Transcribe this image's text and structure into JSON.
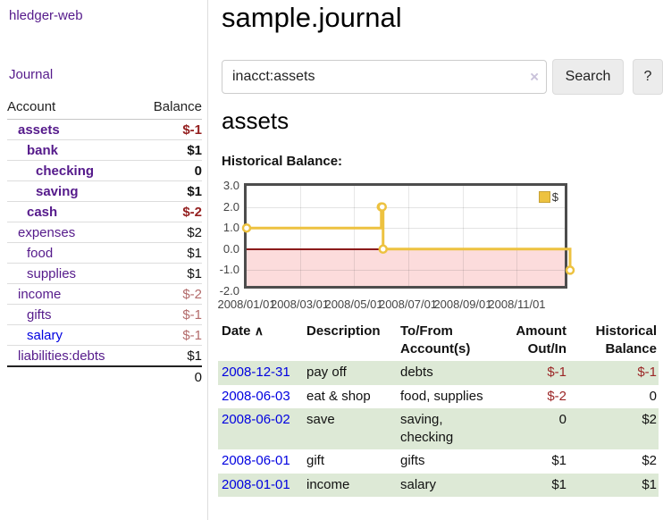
{
  "sidebar": {
    "app_title": "hledger-web",
    "nav": {
      "journal": "Journal"
    },
    "accounts": {
      "headers": {
        "account": "Account",
        "balance": "Balance"
      },
      "rows": [
        {
          "name": "assets",
          "balance": "$-1"
        },
        {
          "name": "bank",
          "balance": "$1"
        },
        {
          "name": "checking",
          "balance": "0"
        },
        {
          "name": "saving",
          "balance": "$1"
        },
        {
          "name": "cash",
          "balance": "$-2"
        },
        {
          "name": "expenses",
          "balance": "$2"
        },
        {
          "name": "food",
          "balance": "$1"
        },
        {
          "name": "supplies",
          "balance": "$1"
        },
        {
          "name": "income",
          "balance": "$-2"
        },
        {
          "name": "gifts",
          "balance": "$-1"
        },
        {
          "name": "salary",
          "balance": "$-1"
        },
        {
          "name": "liabilities:debts",
          "balance": "$1"
        }
      ],
      "total": "0"
    }
  },
  "header": {
    "title": "sample.journal"
  },
  "search": {
    "value": "inacct:assets",
    "clear_icon": "×",
    "search_button": "Search",
    "help_button": "?"
  },
  "account_page": {
    "title": "assets",
    "chart_title": "Historical Balance:"
  },
  "chart_data": {
    "type": "line",
    "step": true,
    "title": "Historical Balance",
    "legend": "$",
    "x_start": "2008-01-01",
    "x_end": "2008-12-31",
    "ylim": [
      -2,
      3
    ],
    "yticks": [
      "3.0",
      "2.0",
      "1.0",
      "0.0",
      "-1.0",
      "-2.0"
    ],
    "xticks": [
      {
        "label": "2008/01/01",
        "date": "2008-01-01"
      },
      {
        "label": "2008/03/01",
        "date": "2008-03-01"
      },
      {
        "label": "2008/05/01",
        "date": "2008-05-01"
      },
      {
        "label": "2008/07/01",
        "date": "2008-07-01"
      },
      {
        "label": "2008/09/01",
        "date": "2008-09-01"
      },
      {
        "label": "2008/11/01",
        "date": "2008-11-01"
      }
    ],
    "points": [
      {
        "date": "2008-01-01",
        "value": 1
      },
      {
        "date": "2008-06-01",
        "value": 2
      },
      {
        "date": "2008-06-02",
        "value": 2
      },
      {
        "date": "2008-06-03",
        "value": 0
      },
      {
        "date": "2008-12-31",
        "value": -1
      }
    ],
    "colors": {
      "line": "#edc240",
      "marker_fill": "#ffffff",
      "negative_region": "#fcdcdc",
      "zero_line": "#8b1a1a"
    }
  },
  "register": {
    "headers": {
      "date": "Date",
      "sort_icon": "∧",
      "description": "Description",
      "accounts": "To/From\nAccount(s)",
      "amount": "Amount\nOut/In",
      "balance": "Historical\nBalance"
    },
    "rows": [
      {
        "date": "2008-12-31",
        "description": "pay off",
        "accounts": "debts",
        "amount": "$-1",
        "balance": "$-1"
      },
      {
        "date": "2008-06-03",
        "description": "eat & shop",
        "accounts": "food, supplies",
        "amount": "$-2",
        "balance": "0"
      },
      {
        "date": "2008-06-02",
        "description": "save",
        "accounts": "saving,\nchecking",
        "amount": "0",
        "balance": "$2"
      },
      {
        "date": "2008-06-01",
        "description": "gift",
        "accounts": "gifts",
        "amount": "$1",
        "balance": "$2"
      },
      {
        "date": "2008-01-01",
        "description": "income",
        "accounts": "salary",
        "amount": "$1",
        "balance": "$1"
      }
    ]
  }
}
